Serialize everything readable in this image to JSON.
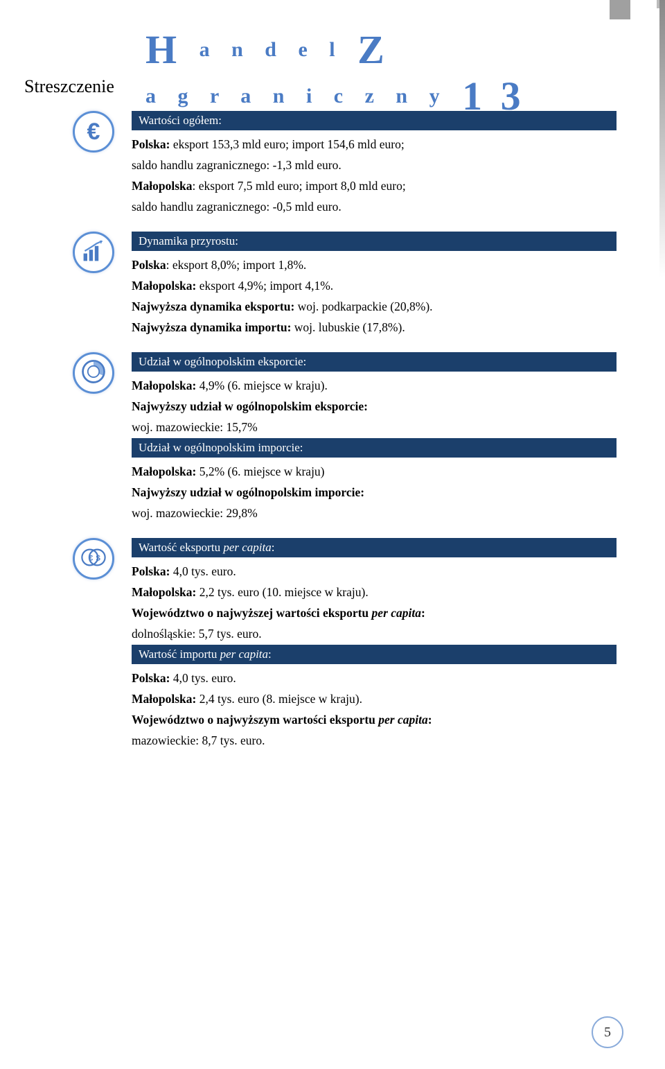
{
  "colors": {
    "band_bg": "#1b3f6b",
    "band_fg": "#ffffff",
    "header_fg": "#4a7bc4",
    "icon_border": "#5b8fd5",
    "page_num_border": "#8aabda"
  },
  "header": {
    "word1_big": "H",
    "word1_rest": "a n d e l",
    "word2_big": "Z",
    "word2_rest": "a g r a n i c z n y",
    "num": "1 3"
  },
  "page_title": "Streszczenie",
  "sections": [
    {
      "icon": "euro",
      "blocks": [
        {
          "type": "band",
          "text": "Wartości ogółem:"
        },
        {
          "type": "line",
          "parts": [
            {
              "b": true,
              "t": "Polska:"
            },
            {
              "t": " eksport 153,3 mld euro; import 154,6 mld euro;"
            }
          ]
        },
        {
          "type": "line",
          "parts": [
            {
              "t": "saldo handlu zagranicznego: -1,3 mld euro."
            }
          ]
        },
        {
          "type": "line",
          "parts": [
            {
              "b": true,
              "t": "Małopolska"
            },
            {
              "t": ": eksport 7,5 mld euro; import 8,0 mld euro;"
            }
          ]
        },
        {
          "type": "line",
          "parts": [
            {
              "t": "saldo handlu zagranicznego: -0,5 mld euro."
            }
          ]
        }
      ]
    },
    {
      "icon": "chart",
      "blocks": [
        {
          "type": "band",
          "text": "Dynamika przyrostu:"
        },
        {
          "type": "line",
          "parts": [
            {
              "b": true,
              "t": "Polska"
            },
            {
              "t": ": eksport 8,0%; import 1,8%."
            }
          ]
        },
        {
          "type": "line",
          "parts": [
            {
              "b": true,
              "t": "Małopolska:"
            },
            {
              "t": " eksport 4,9%; import 4,1%."
            }
          ]
        },
        {
          "type": "line",
          "parts": [
            {
              "b": true,
              "t": "Najwyższa dynamika eksportu:"
            },
            {
              "t": " woj. podkarpackie (20,8%)."
            }
          ]
        },
        {
          "type": "line",
          "parts": [
            {
              "b": true,
              "t": "Najwyższa dynamika importu:"
            },
            {
              "t": " woj. lubuskie (17,8%)."
            }
          ]
        }
      ]
    },
    {
      "icon": "pie",
      "blocks": [
        {
          "type": "band",
          "text": "Udział w ogólnopolskim eksporcie:"
        },
        {
          "type": "line",
          "parts": [
            {
              "b": true,
              "t": "Małopolska:"
            },
            {
              "t": " 4,9% (6. miejsce w kraju)."
            }
          ]
        },
        {
          "type": "line",
          "parts": [
            {
              "b": true,
              "t": "Najwyższy udział w ogólnopolskim eksporcie:"
            }
          ]
        },
        {
          "type": "line",
          "parts": [
            {
              "t": "woj. mazowieckie: 15,7%"
            }
          ]
        },
        {
          "type": "band",
          "text": "Udział w ogólnopolskim imporcie:"
        },
        {
          "type": "line",
          "parts": [
            {
              "b": true,
              "t": "Małopolska:"
            },
            {
              "t": " 5,2% (6. miejsce w kraju)"
            }
          ]
        },
        {
          "type": "line",
          "parts": [
            {
              "b": true,
              "t": "Najwyższy udział w ogólnopolskim imporcie:"
            }
          ]
        },
        {
          "type": "line",
          "parts": [
            {
              "t": "woj. mazowieckie: 29,8%"
            }
          ]
        }
      ]
    },
    {
      "icon": "coins",
      "blocks": [
        {
          "type": "band",
          "html": true,
          "parts": [
            {
              "t": "Wartość eksportu "
            },
            {
              "i": true,
              "t": "per capita"
            },
            {
              "t": ":"
            }
          ]
        },
        {
          "type": "line",
          "parts": [
            {
              "b": true,
              "t": "Polska:"
            },
            {
              "t": " 4,0 tys. euro."
            }
          ]
        },
        {
          "type": "line",
          "parts": [
            {
              "b": true,
              "t": "Małopolska:"
            },
            {
              "t": " 2,2 tys. euro (10. miejsce w kraju)."
            }
          ]
        },
        {
          "type": "line",
          "parts": [
            {
              "b": true,
              "t": "Województwo o najwyższej wartości eksportu "
            },
            {
              "b": true,
              "i": true,
              "t": "per capita"
            },
            {
              "b": true,
              "t": ":"
            }
          ]
        },
        {
          "type": "line",
          "parts": [
            {
              "t": "dolnośląskie: 5,7 tys. euro."
            }
          ]
        },
        {
          "type": "band",
          "html": true,
          "parts": [
            {
              "t": "Wartość importu "
            },
            {
              "i": true,
              "t": "per capita"
            },
            {
              "t": ":"
            }
          ]
        },
        {
          "type": "line",
          "parts": [
            {
              "b": true,
              "t": "Polska:"
            },
            {
              "t": " 4,0 tys. euro."
            }
          ]
        },
        {
          "type": "line",
          "parts": [
            {
              "b": true,
              "t": "Małopolska:"
            },
            {
              "t": " 2,4 tys. euro (8. miejsce w kraju)."
            }
          ]
        },
        {
          "type": "line",
          "parts": [
            {
              "b": true,
              "t": "Województwo o najwyższym wartości eksportu "
            },
            {
              "b": true,
              "i": true,
              "t": "per capita"
            },
            {
              "b": true,
              "t": ":"
            }
          ]
        },
        {
          "type": "line",
          "parts": [
            {
              "t": "mazowieckie: 8,7 tys. euro."
            }
          ]
        }
      ]
    }
  ],
  "page_number": "5"
}
